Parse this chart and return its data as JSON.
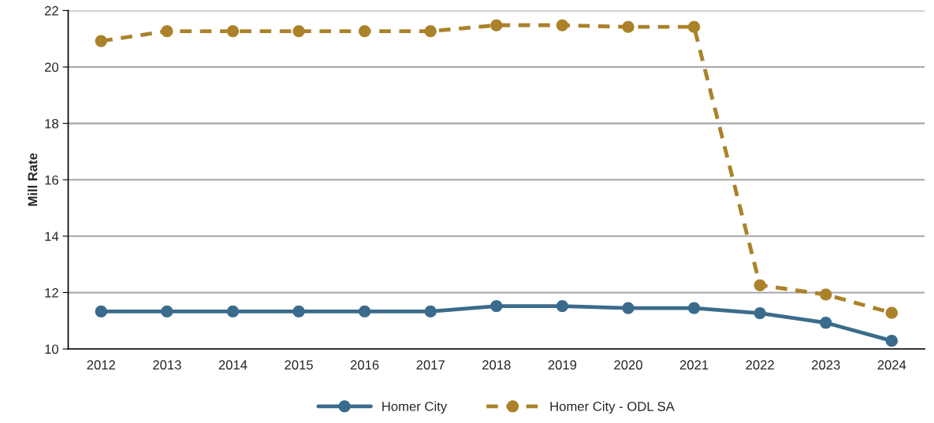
{
  "chart_data": {
    "type": "line",
    "ylabel": "Mill Rate",
    "categories": [
      "2012",
      "2013",
      "2014",
      "2015",
      "2016",
      "2017",
      "2018",
      "2019",
      "2020",
      "2021",
      "2022",
      "2023",
      "2024"
    ],
    "series": [
      {
        "name": "Homer City",
        "color": "#3b6b8c",
        "line_style": "solid",
        "values": [
          11.33,
          11.33,
          11.33,
          11.33,
          11.33,
          11.33,
          11.52,
          11.52,
          11.45,
          11.45,
          11.27,
          10.93,
          10.29
        ]
      },
      {
        "name": "Homer City - ODL SA",
        "color": "#ab8229",
        "line_style": "dashed",
        "values": [
          20.92,
          21.27,
          21.27,
          21.27,
          21.27,
          21.27,
          21.48,
          21.48,
          21.42,
          21.42,
          12.26,
          11.93,
          11.28
        ]
      }
    ],
    "ylim": [
      10,
      22
    ],
    "yticks": [
      10,
      12,
      14,
      16,
      18,
      20,
      22
    ],
    "grid": "y",
    "legend": "bottom",
    "marker": "circle"
  }
}
